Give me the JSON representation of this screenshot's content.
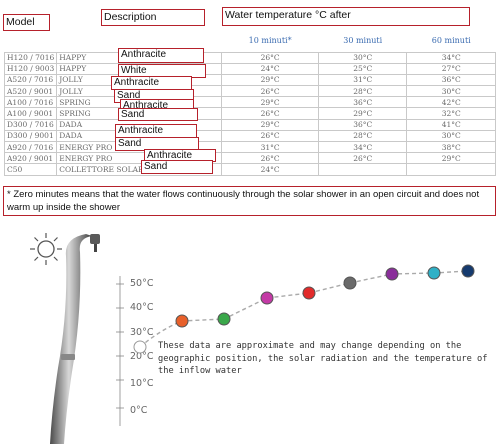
{
  "header": {
    "model_label": "Model",
    "description_label": "Description",
    "temp_label": "Water temperature °C after"
  },
  "columns": [
    "10 minuti*",
    "30 minuti",
    "60 minuti"
  ],
  "rows": [
    {
      "model": "H120 / 7016",
      "desc": "HAPPY",
      "color": "Anthracite",
      "t10": "26°C",
      "t30": "30°C",
      "t60": "34°C"
    },
    {
      "model": "H120 / 9003",
      "desc": "HAPPY",
      "color": "White",
      "t10": "24°C",
      "t30": "25°C",
      "t60": "27°C"
    },
    {
      "model": "A520 / 7016",
      "desc": "JOLLY",
      "color": "Anthracite",
      "t10": "29°C",
      "t30": "31°C",
      "t60": "36°C"
    },
    {
      "model": "A520 / 9001",
      "desc": "JOLLY",
      "color": "Sand",
      "t10": "26°C",
      "t30": "28°C",
      "t60": "30°C"
    },
    {
      "model": "A100 / 7016",
      "desc": "SPRING",
      "color": "Anthracite",
      "t10": "29°C",
      "t30": "36°C",
      "t60": "42°C"
    },
    {
      "model": "A100 / 9001",
      "desc": "SPRING",
      "color": "Sand",
      "t10": "26°C",
      "t30": "29°C",
      "t60": "32°C"
    },
    {
      "model": "D300 / 7016",
      "desc": "DADA",
      "color": "Anthracite",
      "t10": "29°C",
      "t30": "36°C",
      "t60": "41°C"
    },
    {
      "model": "D300 / 9001",
      "desc": "DADA",
      "color": "Sand",
      "t10": "26°C",
      "t30": "28°C",
      "t60": "30°C"
    },
    {
      "model": "A920 / 7016",
      "desc": "ENERGY PRO",
      "color": "Anthracite",
      "t10": "31°C",
      "t30": "34°C",
      "t60": "38°C"
    },
    {
      "model": "A920 / 9001",
      "desc": "ENERGY PRO",
      "color": "Sand",
      "t10": "26°C",
      "t30": "26°C",
      "t60": "29°C"
    },
    {
      "model": "C50",
      "desc": "COLLETTORE SOLARE 40 LT.",
      "color": "",
      "t10": "24°C",
      "t30": "",
      "t60": ""
    }
  ],
  "footnote": "* Zero minutes means that the water flows continuously through the solar shower in an open circuit and does not warm up inside the shower",
  "scale_ticks": [
    "50°C",
    "40°C",
    "30°C",
    "20°C",
    "10°C",
    "0°C"
  ],
  "disclaimer": "These data are approximate and may change depending on the geographic position, the solar radiation and the temperature of the inflow water",
  "dot_colors": [
    "#ffffff",
    "#e8602a",
    "#3aa84a",
    "#c43aa6",
    "#e22b2b",
    "#6a6a6a",
    "#8a2e9a",
    "#3aa84a",
    "#2fb0c6",
    "#2a3f9e",
    "#153a6e"
  ]
}
